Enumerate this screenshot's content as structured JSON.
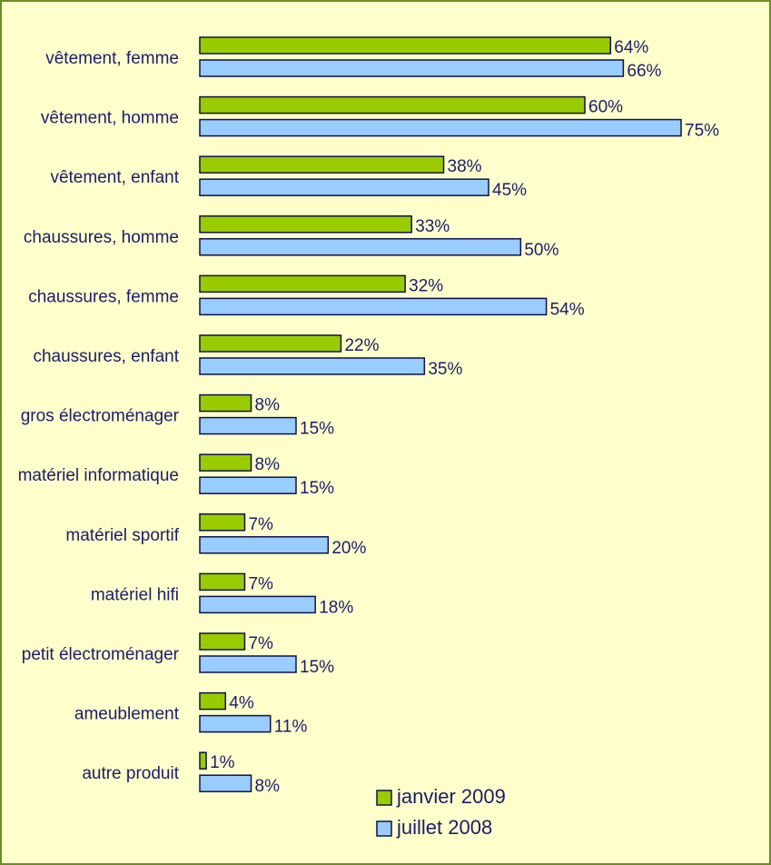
{
  "chart_data": {
    "type": "bar",
    "orientation": "horizontal",
    "categories": [
      "vêtement, femme",
      "vêtement, homme",
      "vêtement, enfant",
      "chaussures, homme",
      "chaussures, femme",
      "chaussures, enfant",
      "gros électroménager",
      "matériel informatique",
      "matériel sportif",
      "matériel hifi",
      "petit électroménager",
      "ameublement",
      "autre produit"
    ],
    "series": [
      {
        "name": "janvier 2009",
        "color": "#99cc00",
        "values": [
          64,
          60,
          38,
          33,
          32,
          22,
          8,
          8,
          7,
          7,
          7,
          4,
          1
        ],
        "value_labels": [
          "64%",
          "60%",
          "38%",
          "33%",
          "32%",
          "22%",
          "8%",
          "8%",
          "7%",
          "7%",
          "7%",
          "4%",
          "1%"
        ]
      },
      {
        "name": "juillet 2008",
        "color": "#99ccff",
        "values": [
          66,
          75,
          45,
          50,
          54,
          35,
          15,
          15,
          20,
          18,
          15,
          11,
          8
        ],
        "value_labels": [
          "66%",
          "75%",
          "45%",
          "50%",
          "54%",
          "35%",
          "15%",
          "15%",
          "20%",
          "18%",
          "15%",
          "11%",
          "8%"
        ]
      }
    ],
    "legend": "bottom-right"
  }
}
